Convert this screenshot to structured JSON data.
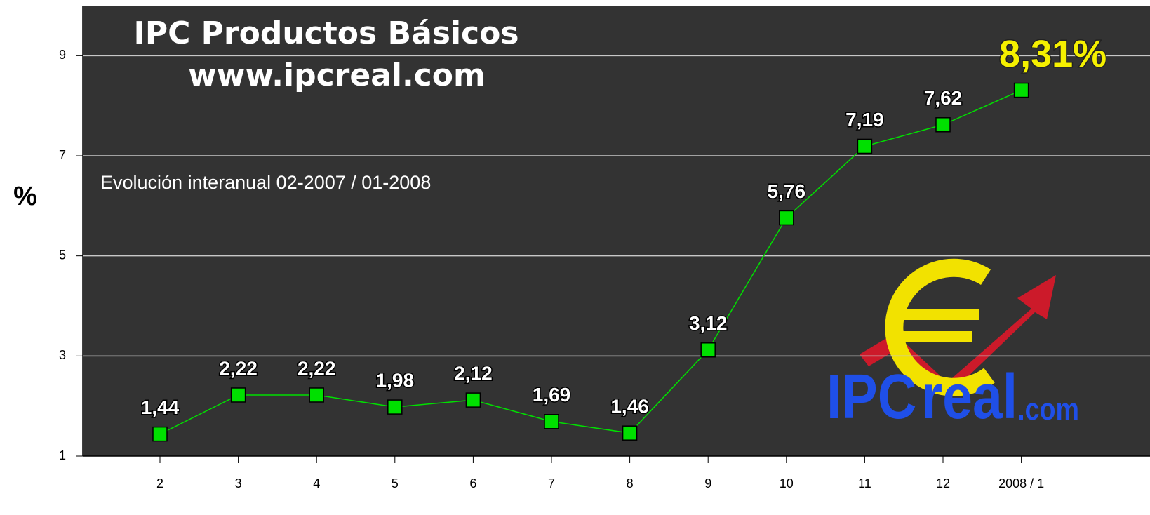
{
  "chart_data": {
    "type": "line",
    "title": "IPC Productos Básicos",
    "subtitle": "www.ipcreal.com",
    "annotation": "Evolución interanual 02-2007 /  01-2008",
    "y_label": "%",
    "logo": [
      "IPC",
      "real",
      ".com"
    ],
    "categories": [
      "2",
      "3",
      "4",
      "5",
      "6",
      "7",
      "8",
      "9",
      "10",
      "11",
      "12",
      "2008 / 1"
    ],
    "series": [
      {
        "name": "IPC Productos Básicos",
        "color": "#00e000",
        "values": [
          1.44,
          2.22,
          2.22,
          1.98,
          2.12,
          1.69,
          1.46,
          3.12,
          5.76,
          7.19,
          7.62,
          8.31
        ],
        "value_labels": [
          "1,44",
          "2,22",
          "2,22",
          "1,98",
          "2,12",
          "1,69",
          "1,46",
          "3,12",
          "5,76",
          "7,19",
          "7,62",
          "8,31%"
        ]
      }
    ],
    "ylim": [
      1,
      10
    ],
    "yticks": [
      1,
      3,
      5,
      7,
      9
    ],
    "grid": true
  }
}
